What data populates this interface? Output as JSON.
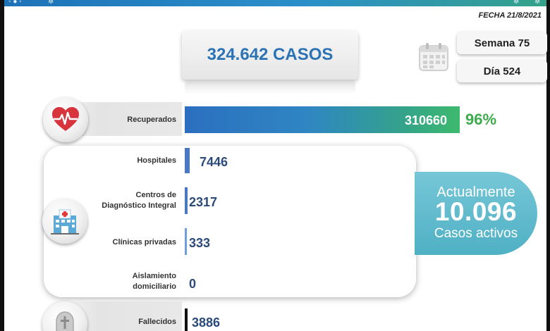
{
  "header": {
    "date": "FECHA 21/8/2021"
  },
  "summary": {
    "total_cases": "324.642 CASOS",
    "week": "Semana 75",
    "day": "Día 524"
  },
  "recovered": {
    "label": "Recuperados",
    "value": "310660",
    "percent": "96%",
    "fraction": 0.96
  },
  "active_breakdown": {
    "hospitals": {
      "label": "Hospitales",
      "value": "7446"
    },
    "diagnostic_centers": {
      "label_line1": "Centros de",
      "label_line2": "Diagnóstico Integral",
      "value": "2317"
    },
    "private_clinics": {
      "label": "Clínicas privadas",
      "value": "333"
    },
    "home_isolation": {
      "label_line1": "Aislamiento",
      "label_line2": "domiciliario",
      "value": "0"
    }
  },
  "active_total": {
    "line1": "Actualmente",
    "value": "10.096",
    "line3": "Casos activos"
  },
  "deceased": {
    "label": "Fallecidos",
    "value": "3886"
  },
  "colors": {
    "primary_blue": "#2b73b5",
    "recovered_green": "#3cac4a",
    "active_teal": "#4fb0c4",
    "heart_red": "#d8343d"
  },
  "icons": {
    "recovered": "heart-pulse-icon",
    "active": "hospital-icon",
    "deceased": "tombstone-cross-icon",
    "calendar": "calendar-icon"
  }
}
